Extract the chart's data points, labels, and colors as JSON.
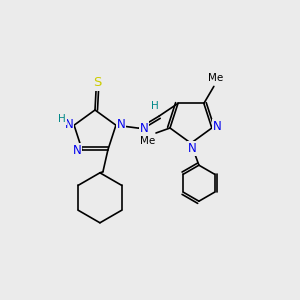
{
  "bg_color": "#ebebeb",
  "atom_colors": {
    "N": "#0000ee",
    "S": "#cccc00",
    "C": "#000000",
    "H": "#008888"
  },
  "bond_color": "#000000",
  "lw": 1.2
}
